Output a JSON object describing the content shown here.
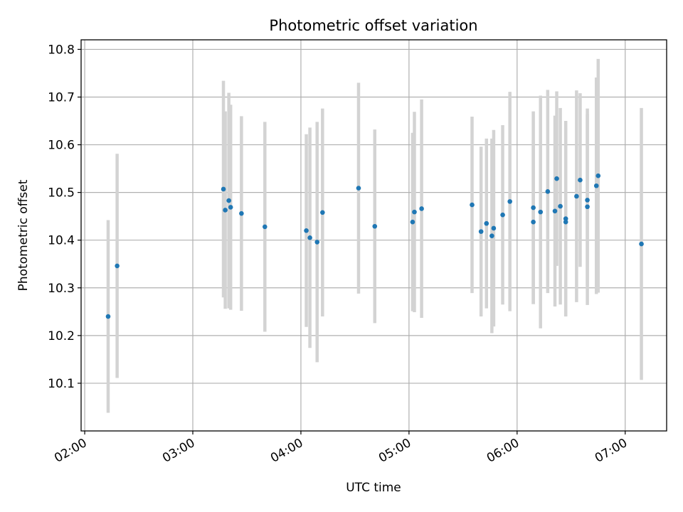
{
  "chart_data": {
    "type": "scatter",
    "title": "Photometric offset variation",
    "xlabel": "UTC time",
    "ylabel": "Photometric offset",
    "x_ticks": [
      "02:00",
      "03:00",
      "04:00",
      "05:00",
      "06:00",
      "07:00"
    ],
    "y_ticks": [
      "10.1",
      "10.2",
      "10.3",
      "10.4",
      "10.5",
      "10.6",
      "10.7",
      "10.8"
    ],
    "xlim": [
      "01:58",
      "07:23"
    ],
    "ylim": [
      10.0,
      10.82
    ],
    "grid": true,
    "colors": {
      "points": "#1f77b4",
      "error_bars": "#d3d3d3",
      "grid": "#b0b0b0"
    },
    "series": [
      {
        "error_bars": true,
        "points": [
          {
            "x": "02:13",
            "y": 10.24,
            "yerr": 0.202
          },
          {
            "x": "02:18",
            "y": 10.346,
            "yerr": 0.235
          },
          {
            "x": "03:17",
            "y": 10.507,
            "yerr": 0.227
          },
          {
            "x": "03:18",
            "y": 10.463,
            "yerr": 0.207
          },
          {
            "x": "03:20",
            "y": 10.483,
            "yerr": 0.226
          },
          {
            "x": "03:21",
            "y": 10.469,
            "yerr": 0.215
          },
          {
            "x": "03:27",
            "y": 10.456,
            "yerr": 0.204
          },
          {
            "x": "03:40",
            "y": 10.428,
            "yerr": 0.22
          },
          {
            "x": "04:03",
            "y": 10.42,
            "yerr": 0.202
          },
          {
            "x": "04:05",
            "y": 10.405,
            "yerr": 0.231
          },
          {
            "x": "04:09",
            "y": 10.396,
            "yerr": 0.252
          },
          {
            "x": "04:12",
            "y": 10.458,
            "yerr": 0.218
          },
          {
            "x": "04:32",
            "y": 10.509,
            "yerr": 0.221
          },
          {
            "x": "04:41",
            "y": 10.429,
            "yerr": 0.203
          },
          {
            "x": "05:02",
            "y": 10.438,
            "yerr": 0.187
          },
          {
            "x": "05:03",
            "y": 10.459,
            "yerr": 0.21
          },
          {
            "x": "05:07",
            "y": 10.466,
            "yerr": 0.229
          },
          {
            "x": "05:35",
            "y": 10.474,
            "yerr": 0.185
          },
          {
            "x": "05:40",
            "y": 10.418,
            "yerr": 0.178
          },
          {
            "x": "05:43",
            "y": 10.435,
            "yerr": 0.178
          },
          {
            "x": "05:46",
            "y": 10.409,
            "yerr": 0.204
          },
          {
            "x": "05:47",
            "y": 10.425,
            "yerr": 0.206
          },
          {
            "x": "05:52",
            "y": 10.453,
            "yerr": 0.188
          },
          {
            "x": "05:56",
            "y": 10.481,
            "yerr": 0.23
          },
          {
            "x": "06:09",
            "y": 10.438,
            "yerr": 0.172
          },
          {
            "x": "06:09",
            "y": 10.468,
            "yerr": 0.202
          },
          {
            "x": "06:13",
            "y": 10.459,
            "yerr": 0.244
          },
          {
            "x": "06:17",
            "y": 10.502,
            "yerr": 0.213
          },
          {
            "x": "06:21",
            "y": 10.461,
            "yerr": 0.2
          },
          {
            "x": "06:22",
            "y": 10.529,
            "yerr": 0.183
          },
          {
            "x": "06:24",
            "y": 10.471,
            "yerr": 0.206
          },
          {
            "x": "06:27",
            "y": 10.438,
            "yerr": 0.197
          },
          {
            "x": "06:27",
            "y": 10.445,
            "yerr": 0.205
          },
          {
            "x": "06:33",
            "y": 10.492,
            "yerr": 0.222
          },
          {
            "x": "06:35",
            "y": 10.526,
            "yerr": 0.182
          },
          {
            "x": "06:39",
            "y": 10.47,
            "yerr": 0.206
          },
          {
            "x": "06:39",
            "y": 10.484,
            "yerr": 0.18
          },
          {
            "x": "06:44",
            "y": 10.514,
            "yerr": 0.227
          },
          {
            "x": "06:45",
            "y": 10.535,
            "yerr": 0.245
          },
          {
            "x": "07:09",
            "y": 10.392,
            "yerr": 0.285
          }
        ]
      }
    ]
  }
}
